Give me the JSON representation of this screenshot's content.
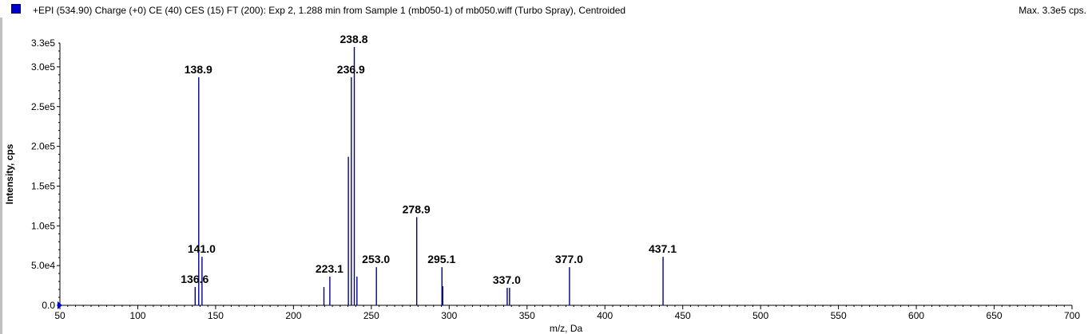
{
  "header": {
    "title": "+EPI (534.90) Charge (+0) CE (40) CES (15) FT (200): Exp 2, 1.288 min from Sample 1 (mb050-1) of mb050.wiff (Turbo Spray), Centroided",
    "max_label": "Max. 3.3e5 cps.",
    "swatch_color": "#0000cc"
  },
  "chart_data": {
    "type": "bar",
    "xlabel": "m/z, Da",
    "ylabel": "Intensity, cps",
    "xlim": [
      50,
      700
    ],
    "ylim": [
      0,
      330000
    ],
    "x_ticks": [
      50,
      100,
      150,
      200,
      250,
      300,
      350,
      400,
      450,
      500,
      550,
      600,
      650,
      700
    ],
    "x_tick_labels": [
      "50",
      "100",
      "150",
      "200",
      "250",
      "300",
      "350",
      "400",
      "450",
      "500",
      "550",
      "600",
      "650",
      "700"
    ],
    "y_ticks": [
      0,
      50000,
      100000,
      150000,
      200000,
      250000,
      300000,
      330000
    ],
    "y_tick_labels": [
      "0.0",
      "5.0e4",
      "1.0e5",
      "1.5e5",
      "2.0e5",
      "2.5e5",
      "3.0e5",
      "3.3e5"
    ],
    "line_color": "#00008b",
    "peaks": [
      {
        "mz": 136.6,
        "intensity": 23000
      },
      {
        "mz": 138.9,
        "intensity": 287000
      },
      {
        "mz": 141.0,
        "intensity": 61000
      },
      {
        "mz": 219.3,
        "intensity": 23000
      },
      {
        "mz": 223.1,
        "intensity": 36000
      },
      {
        "mz": 235.0,
        "intensity": 187000
      },
      {
        "mz": 236.9,
        "intensity": 287000
      },
      {
        "mz": 238.8,
        "intensity": 325000
      },
      {
        "mz": 240.5,
        "intensity": 36000
      },
      {
        "mz": 253.0,
        "intensity": 48000
      },
      {
        "mz": 278.9,
        "intensity": 111000
      },
      {
        "mz": 295.1,
        "intensity": 48000
      },
      {
        "mz": 295.6,
        "intensity": 24000
      },
      {
        "mz": 337.0,
        "intensity": 22000
      },
      {
        "mz": 338.5,
        "intensity": 22000
      },
      {
        "mz": 377.0,
        "intensity": 48000
      },
      {
        "mz": 437.1,
        "intensity": 61000
      }
    ],
    "annotations": [
      {
        "text": "138.9",
        "mz": 138.9,
        "intensity": 287000
      },
      {
        "text": "238.8",
        "mz": 238.8,
        "intensity": 325000
      },
      {
        "text": "236.9",
        "mz": 236.9,
        "intensity": 287000
      },
      {
        "text": "278.9",
        "mz": 278.9,
        "intensity": 111000
      },
      {
        "text": "141.0",
        "mz": 141.0,
        "intensity": 61000
      },
      {
        "text": "437.1",
        "mz": 437.1,
        "intensity": 61000
      },
      {
        "text": "223.1",
        "mz": 223.1,
        "intensity": 36000
      },
      {
        "text": "253.0",
        "mz": 253.0,
        "intensity": 48000
      },
      {
        "text": "295.1",
        "mz": 295.1,
        "intensity": 48000
      },
      {
        "text": "377.0",
        "mz": 377.0,
        "intensity": 48000
      },
      {
        "text": "136.6",
        "mz": 136.6,
        "intensity": 23000
      },
      {
        "text": "337.0",
        "mz": 337.0,
        "intensity": 22000
      }
    ]
  }
}
